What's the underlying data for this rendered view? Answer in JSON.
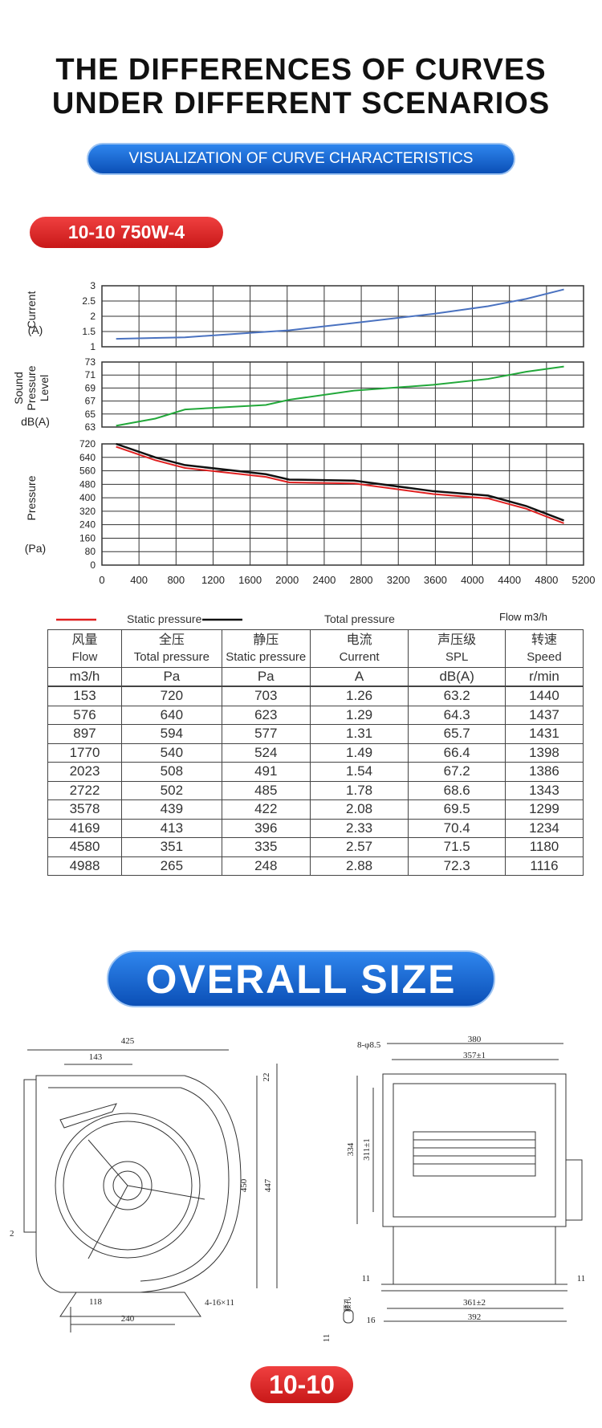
{
  "header": {
    "title_lines": [
      "THE DIFFERENCES OF CURVES",
      "UNDER DIFFERENT SCENARIOS"
    ],
    "subtitle": "VISUALIZATION OF CURVE CHARACTERISTICS",
    "model": "10-10 750W-4"
  },
  "chart_data": [
    {
      "type": "line",
      "y_label": [
        "Current"
      ],
      "y_unit": "(A)",
      "x": [
        153,
        576,
        897,
        1770,
        2023,
        2722,
        3578,
        4169,
        4580,
        4988
      ],
      "series": [
        {
          "name": "Current",
          "color": "#4a72c0",
          "values": [
            1.26,
            1.29,
            1.31,
            1.49,
            1.54,
            1.78,
            2.08,
            2.33,
            2.57,
            2.88
          ]
        }
      ],
      "xlim": [
        0,
        5200
      ],
      "xticks": [
        0,
        400,
        800,
        1200,
        1600,
        2000,
        2400,
        2800,
        3200,
        3600,
        4000,
        4400,
        4800,
        5200
      ],
      "show_x_tick_labels": false,
      "ylim": [
        1,
        3
      ],
      "yticks": [
        1,
        1.5,
        2,
        2.5,
        3
      ],
      "grid": true
    },
    {
      "type": "line",
      "y_label": [
        "Sound",
        "Pressure",
        "Level"
      ],
      "y_unit": "dB(A)",
      "x": [
        153,
        576,
        897,
        1770,
        2023,
        2722,
        3578,
        4169,
        4580,
        4988
      ],
      "series": [
        {
          "name": "SPL",
          "color": "#22a83a",
          "values": [
            63.2,
            64.3,
            65.7,
            66.4,
            67.2,
            68.6,
            69.5,
            70.4,
            71.5,
            72.3
          ]
        }
      ],
      "xlim": [
        0,
        5200
      ],
      "xticks": [
        0,
        400,
        800,
        1200,
        1600,
        2000,
        2400,
        2800,
        3200,
        3600,
        4000,
        4400,
        4800,
        5200
      ],
      "show_x_tick_labels": false,
      "ylim": [
        63,
        73
      ],
      "yticks": [
        63,
        65,
        67,
        69,
        71,
        73
      ],
      "grid": true
    },
    {
      "type": "line",
      "y_label": [
        "Pressure"
      ],
      "y_unit": "(Pa)",
      "x_label": "Flow m3/h",
      "x": [
        153,
        576,
        897,
        1770,
        2023,
        2722,
        3578,
        4169,
        4580,
        4988
      ],
      "series": [
        {
          "name": "Static pressure",
          "color": "#e02020",
          "values": [
            703,
            623,
            577,
            524,
            491,
            485,
            422,
            396,
            335,
            248
          ]
        },
        {
          "name": "Total pressure",
          "color": "#111111",
          "values": [
            720,
            640,
            594,
            540,
            508,
            502,
            439,
            413,
            351,
            265
          ]
        }
      ],
      "xlim": [
        0,
        5200
      ],
      "xticks": [
        0,
        400,
        800,
        1200,
        1600,
        2000,
        2400,
        2800,
        3200,
        3600,
        4000,
        4400,
        4800,
        5200
      ],
      "show_x_tick_labels": true,
      "ylim": [
        0,
        720
      ],
      "yticks": [
        0,
        80,
        160,
        240,
        320,
        400,
        480,
        560,
        640,
        720
      ],
      "grid": true
    }
  ],
  "table": {
    "header": [
      [
        "风量",
        "Flow"
      ],
      [
        "全压",
        "Total pressure"
      ],
      [
        "静压",
        "Static pressure"
      ],
      [
        "电流",
        "Current"
      ],
      [
        "声压级",
        "SPL"
      ],
      [
        "转速",
        "Speed"
      ]
    ],
    "units": [
      "m3/h",
      "Pa",
      "Pa",
      "A",
      "dB(A)",
      "r/min"
    ],
    "rows": [
      [
        153,
        720,
        703,
        1.26,
        63.2,
        1440
      ],
      [
        576,
        640,
        623,
        1.29,
        64.3,
        1437
      ],
      [
        897,
        594,
        577,
        1.31,
        65.7,
        1431
      ],
      [
        1770,
        540,
        524,
        1.49,
        66.4,
        1398
      ],
      [
        2023,
        508,
        491,
        1.54,
        67.2,
        1386
      ],
      [
        2722,
        502,
        485,
        1.78,
        68.6,
        1343
      ],
      [
        3578,
        439,
        422,
        2.08,
        69.5,
        1299
      ],
      [
        4169,
        413,
        396,
        2.33,
        70.4,
        1234
      ],
      [
        4580,
        351,
        335,
        2.57,
        71.5,
        1180
      ],
      [
        4988,
        265,
        248,
        2.88,
        72.3,
        1116
      ]
    ]
  },
  "size": {
    "title": "OVERALL SIZE",
    "left_drawing": {
      "width": "425",
      "inlet_offset": "143",
      "top_gap": "22",
      "height": "450",
      "height_inner": "447",
      "side_gap": "2",
      "foot_offset": "118",
      "foot_span": "240",
      "holes": "4-16×11"
    },
    "right_drawing": {
      "holes": "8-φ8.5",
      "width": "380",
      "hole_span": "357±1",
      "height": "334",
      "hole_height": "311±1",
      "foot_left": "11",
      "foot_right": "11",
      "base_span": "361±2",
      "base_width": "392",
      "slot_width": "16",
      "slot_label": "腰孔",
      "slot_height": "11"
    }
  },
  "footer": {
    "model": "10-10"
  }
}
